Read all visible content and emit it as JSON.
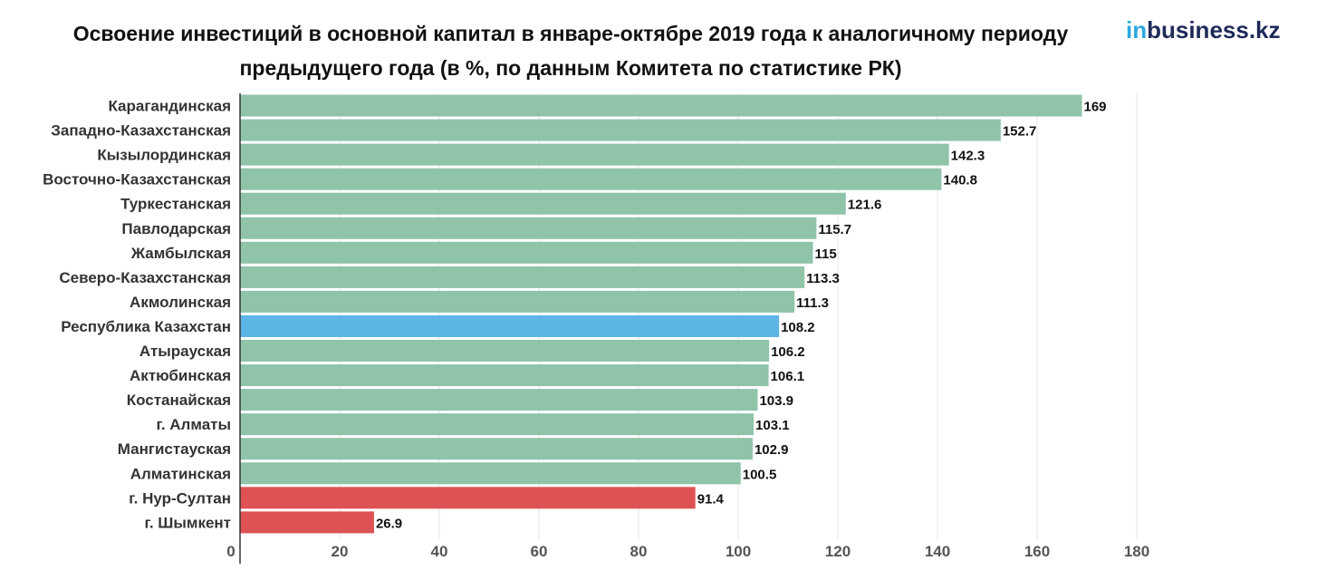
{
  "header": {
    "title_line1": "Освоение инвестиций в основной капитал в январе-октябре 2019 года к аналогичному периоду",
    "title_line2": "предыдущего года (в %, по данным Комитета по статистике РК)",
    "logo_accent": "in",
    "logo_rest": "business.kz"
  },
  "chart_data": {
    "type": "bar",
    "orientation": "horizontal",
    "title": "Освоение инвестиций в основной капитал в январе-октябре 2019 года к аналогичному периоду предыдущего года (в %, по данным Комитета по статистике РК)",
    "categories": [
      "Карагандинская",
      "Западно-Казахстанская",
      "Кызылординская",
      "Восточно-Казахстанская",
      "Туркестанская",
      "Павлодарская",
      "Жамбылская",
      "Северо-Казахстанская",
      "Акмолинская",
      "Республика Казахстан",
      "Атырауская",
      "Актюбинская",
      "Костанайская",
      "г. Алматы",
      "Мангистауская",
      "Алматинская",
      "г. Нур-Султан",
      "г. Шымкент"
    ],
    "values": [
      169,
      152.7,
      142.3,
      140.8,
      121.6,
      115.7,
      115,
      113.3,
      111.3,
      108.2,
      106.2,
      106.1,
      103.9,
      103.1,
      102.9,
      100.5,
      91.4,
      26.9
    ],
    "value_labels": [
      "169",
      "152.7",
      "142.3",
      "140.8",
      "121.6",
      "115.7",
      "115",
      "113.3",
      "111.3",
      "108.2",
      "106.2",
      "106.1",
      "103.9",
      "103.1",
      "102.9",
      "100.5",
      "91.4",
      "26.9"
    ],
    "bar_colors": [
      "#8fc4a8",
      "#8fc4a8",
      "#8fc4a8",
      "#8fc4a8",
      "#8fc4a8",
      "#8fc4a8",
      "#8fc4a8",
      "#8fc4a8",
      "#8fc4a8",
      "#5db5e5",
      "#8fc4a8",
      "#8fc4a8",
      "#8fc4a8",
      "#8fc4a8",
      "#8fc4a8",
      "#8fc4a8",
      "#de5253",
      "#de5253"
    ],
    "xlim": [
      0,
      180
    ],
    "xticks": [
      0,
      20,
      40,
      60,
      80,
      100,
      120,
      140,
      160,
      180
    ],
    "grid": true,
    "xlabel": "",
    "ylabel": ""
  }
}
